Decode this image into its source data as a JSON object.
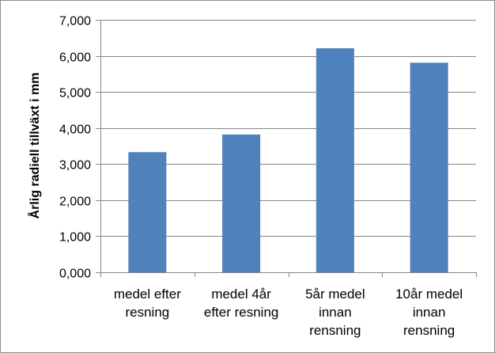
{
  "chart_data": {
    "type": "bar",
    "categories": [
      [
        "medel efter",
        "resning"
      ],
      [
        "medel 4år",
        "efter resning"
      ],
      [
        "5år medel",
        "innan",
        "rensning"
      ],
      [
        "10år medel",
        "innan",
        "rensning"
      ]
    ],
    "values": [
      3.33,
      3.82,
      6.21,
      5.81
    ],
    "title": "",
    "xlabel": "",
    "ylabel": "Årlig radiell tillväxt i mm",
    "ylim": [
      0,
      7
    ],
    "yticks": [
      "0,000",
      "1,000",
      "2,000",
      "3,000",
      "4,000",
      "5,000",
      "6,000",
      "7,000"
    ],
    "bar_color": "#4F81BD",
    "grid": true,
    "legend": "none"
  }
}
